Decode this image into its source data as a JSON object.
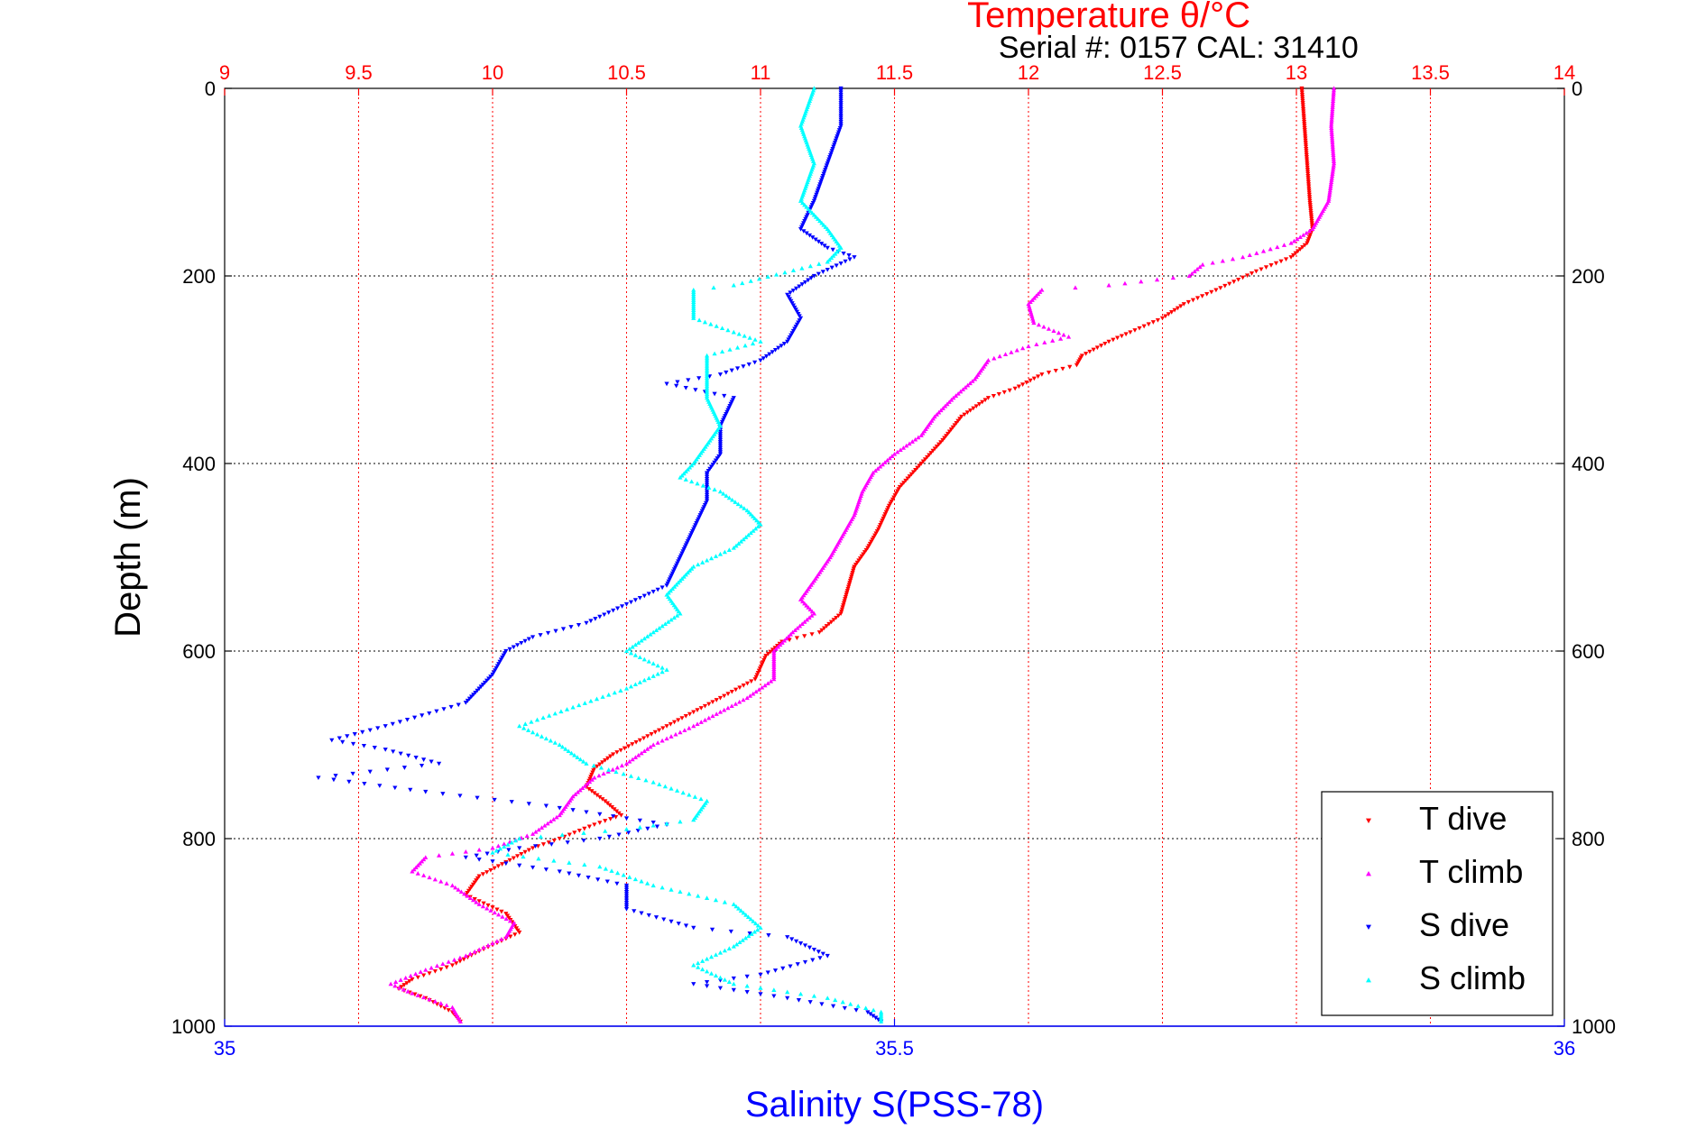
{
  "chart_data": {
    "type": "scatter",
    "title": "Temperature θ/°C",
    "subtitle": "Serial #: 0157  CAL: 31410",
    "top_axis": {
      "label": "Temperature θ/°C",
      "range": [
        9,
        14
      ],
      "ticks": [
        "9",
        "9.5",
        "10",
        "10.5",
        "11",
        "11.5",
        "12",
        "12.5",
        "13",
        "13.5",
        "14"
      ],
      "tick_values": [
        9,
        9.5,
        10,
        10.5,
        11,
        11.5,
        12,
        12.5,
        13,
        13.5,
        14
      ],
      "color": "#ff0000"
    },
    "bottom_axis": {
      "label": "Salinity S(PSS-78)",
      "range": [
        35,
        36
      ],
      "ticks": [
        "35",
        "35.5",
        "36"
      ],
      "tick_values": [
        35,
        35.5,
        36
      ],
      "color": "#0000ff"
    },
    "y_axis": {
      "label": "Depth (m)",
      "range": [
        0,
        1000
      ],
      "reversed": true,
      "ticks": [
        "0",
        "200",
        "400",
        "600",
        "800",
        "1000"
      ],
      "tick_values": [
        0,
        200,
        400,
        600,
        800,
        1000
      ]
    },
    "grid": true,
    "legend_position": "bottom-right",
    "series": [
      {
        "name": "T dive",
        "axis": "temperature",
        "color": "#ff0000",
        "marker": "triangle-down",
        "points": [
          [
            13.02,
            0
          ],
          [
            13.03,
            40
          ],
          [
            13.04,
            80
          ],
          [
            13.05,
            120
          ],
          [
            13.06,
            150
          ],
          [
            13.04,
            165
          ],
          [
            12.98,
            180
          ],
          [
            12.85,
            195
          ],
          [
            12.7,
            215
          ],
          [
            12.58,
            230
          ],
          [
            12.5,
            245
          ],
          [
            12.38,
            260
          ],
          [
            12.3,
            270
          ],
          [
            12.2,
            285
          ],
          [
            12.18,
            295
          ],
          [
            12.05,
            305
          ],
          [
            11.95,
            320
          ],
          [
            11.85,
            330
          ],
          [
            11.75,
            350
          ],
          [
            11.68,
            375
          ],
          [
            11.6,
            400
          ],
          [
            11.52,
            425
          ],
          [
            11.48,
            445
          ],
          [
            11.44,
            470
          ],
          [
            11.4,
            490
          ],
          [
            11.35,
            510
          ],
          [
            11.32,
            540
          ],
          [
            11.3,
            560
          ],
          [
            11.22,
            580
          ],
          [
            11.08,
            590
          ],
          [
            11.02,
            605
          ],
          [
            10.98,
            630
          ],
          [
            10.85,
            650
          ],
          [
            10.75,
            665
          ],
          [
            10.65,
            680
          ],
          [
            10.55,
            695
          ],
          [
            10.45,
            710
          ],
          [
            10.38,
            725
          ],
          [
            10.35,
            745
          ],
          [
            10.42,
            760
          ],
          [
            10.48,
            775
          ],
          [
            10.38,
            785
          ],
          [
            10.25,
            800
          ],
          [
            10.15,
            810
          ],
          [
            10.05,
            825
          ],
          [
            9.95,
            840
          ],
          [
            9.9,
            860
          ],
          [
            10.05,
            880
          ],
          [
            10.1,
            900
          ],
          [
            9.95,
            920
          ],
          [
            9.85,
            935
          ],
          [
            9.7,
            950
          ],
          [
            9.65,
            960
          ],
          [
            9.75,
            970
          ],
          [
            9.85,
            985
          ],
          [
            9.88,
            995
          ]
        ]
      },
      {
        "name": "T climb",
        "axis": "temperature",
        "color": "#ff00ff",
        "marker": "triangle-up",
        "points": [
          [
            13.14,
            0
          ],
          [
            13.13,
            40
          ],
          [
            13.14,
            80
          ],
          [
            13.12,
            120
          ],
          [
            13.06,
            150
          ],
          [
            12.98,
            165
          ],
          [
            12.8,
            180
          ],
          [
            12.65,
            188
          ],
          [
            12.6,
            200
          ],
          [
            12.3,
            210
          ],
          [
            12.05,
            215
          ],
          [
            12.0,
            230
          ],
          [
            12.02,
            250
          ],
          [
            12.15,
            265
          ],
          [
            12.0,
            275
          ],
          [
            11.85,
            290
          ],
          [
            11.8,
            310
          ],
          [
            11.72,
            330
          ],
          [
            11.65,
            350
          ],
          [
            11.6,
            370
          ],
          [
            11.5,
            390
          ],
          [
            11.42,
            410
          ],
          [
            11.38,
            430
          ],
          [
            11.35,
            455
          ],
          [
            11.3,
            480
          ],
          [
            11.26,
            500
          ],
          [
            11.2,
            525
          ],
          [
            11.15,
            545
          ],
          [
            11.2,
            560
          ],
          [
            11.12,
            580
          ],
          [
            11.05,
            600
          ],
          [
            11.05,
            630
          ],
          [
            10.95,
            650
          ],
          [
            10.85,
            665
          ],
          [
            10.75,
            680
          ],
          [
            10.6,
            700
          ],
          [
            10.5,
            720
          ],
          [
            10.38,
            735
          ],
          [
            10.3,
            755
          ],
          [
            10.25,
            775
          ],
          [
            10.15,
            795
          ],
          [
            10.0,
            810
          ],
          [
            9.75,
            820
          ],
          [
            9.7,
            835
          ],
          [
            9.85,
            850
          ],
          [
            9.95,
            870
          ],
          [
            10.08,
            890
          ],
          [
            10.05,
            905
          ],
          [
            9.9,
            925
          ],
          [
            9.75,
            940
          ],
          [
            9.62,
            955
          ],
          [
            9.7,
            965
          ],
          [
            9.85,
            980
          ],
          [
            9.88,
            995
          ]
        ]
      },
      {
        "name": "S dive",
        "axis": "salinity",
        "color": "#0000ff",
        "marker": "triangle-down",
        "points": [
          [
            35.46,
            0
          ],
          [
            35.46,
            40
          ],
          [
            35.45,
            80
          ],
          [
            35.44,
            120
          ],
          [
            35.43,
            150
          ],
          [
            35.45,
            170
          ],
          [
            35.47,
            180
          ],
          [
            35.44,
            200
          ],
          [
            35.42,
            220
          ],
          [
            35.43,
            245
          ],
          [
            35.42,
            270
          ],
          [
            35.4,
            290
          ],
          [
            35.37,
            305
          ],
          [
            35.33,
            315
          ],
          [
            35.38,
            330
          ],
          [
            35.37,
            360
          ],
          [
            35.37,
            390
          ],
          [
            35.36,
            410
          ],
          [
            35.36,
            440
          ],
          [
            35.35,
            470
          ],
          [
            35.34,
            500
          ],
          [
            35.33,
            530
          ],
          [
            35.3,
            550
          ],
          [
            35.27,
            570
          ],
          [
            35.23,
            585
          ],
          [
            35.21,
            600
          ],
          [
            35.2,
            625
          ],
          [
            35.18,
            655
          ],
          [
            35.12,
            680
          ],
          [
            35.08,
            695
          ],
          [
            35.12,
            705
          ],
          [
            35.16,
            720
          ],
          [
            35.07,
            735
          ],
          [
            35.15,
            750
          ],
          [
            35.24,
            765
          ],
          [
            35.33,
            785
          ],
          [
            35.28,
            800
          ],
          [
            35.22,
            810
          ],
          [
            35.18,
            820
          ],
          [
            35.25,
            835
          ],
          [
            35.3,
            850
          ],
          [
            35.3,
            875
          ],
          [
            35.35,
            895
          ],
          [
            35.42,
            905
          ],
          [
            35.45,
            925
          ],
          [
            35.4,
            945
          ],
          [
            35.35,
            955
          ],
          [
            35.42,
            970
          ],
          [
            35.48,
            985
          ],
          [
            35.49,
            995
          ]
        ]
      },
      {
        "name": "S climb",
        "axis": "salinity",
        "color": "#00ffff",
        "marker": "triangle-up",
        "points": [
          [
            35.44,
            0
          ],
          [
            35.43,
            40
          ],
          [
            35.44,
            80
          ],
          [
            35.43,
            120
          ],
          [
            35.45,
            150
          ],
          [
            35.46,
            170
          ],
          [
            35.45,
            185
          ],
          [
            35.38,
            210
          ],
          [
            35.35,
            215
          ],
          [
            35.35,
            230
          ],
          [
            35.35,
            245
          ],
          [
            35.38,
            260
          ],
          [
            35.4,
            270
          ],
          [
            35.36,
            285
          ],
          [
            35.36,
            300
          ],
          [
            35.36,
            330
          ],
          [
            35.37,
            360
          ],
          [
            35.36,
            380
          ],
          [
            35.35,
            400
          ],
          [
            35.34,
            415
          ],
          [
            35.37,
            430
          ],
          [
            35.39,
            450
          ],
          [
            35.4,
            465
          ],
          [
            35.38,
            490
          ],
          [
            35.35,
            510
          ],
          [
            35.33,
            540
          ],
          [
            35.34,
            560
          ],
          [
            35.32,
            580
          ],
          [
            35.3,
            600
          ],
          [
            35.33,
            620
          ],
          [
            35.3,
            640
          ],
          [
            35.26,
            660
          ],
          [
            35.22,
            680
          ],
          [
            35.25,
            700
          ],
          [
            35.27,
            720
          ],
          [
            35.32,
            740
          ],
          [
            35.36,
            760
          ],
          [
            35.35,
            780
          ],
          [
            35.3,
            790
          ],
          [
            35.22,
            800
          ],
          [
            35.2,
            815
          ],
          [
            35.28,
            830
          ],
          [
            35.32,
            850
          ],
          [
            35.38,
            870
          ],
          [
            35.4,
            895
          ],
          [
            35.38,
            915
          ],
          [
            35.35,
            935
          ],
          [
            35.38,
            955
          ],
          [
            35.45,
            970
          ],
          [
            35.49,
            985
          ],
          [
            35.49,
            995
          ]
        ]
      }
    ]
  }
}
